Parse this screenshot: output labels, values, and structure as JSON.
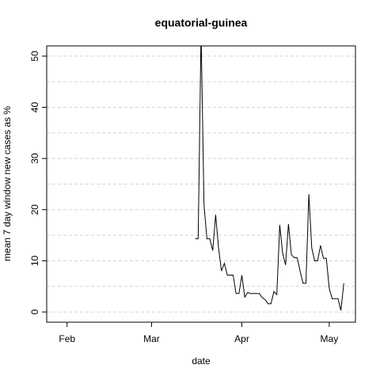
{
  "chart_data": {
    "type": "line",
    "title": "equatorial-guinea",
    "xlabel": "date",
    "ylabel": "mean  7  day window new cases as %",
    "x": [
      "03-16",
      "03-17",
      "03-18",
      "03-19",
      "03-20",
      "03-21",
      "03-22",
      "03-23",
      "03-24",
      "03-25",
      "03-26",
      "03-27",
      "03-28",
      "03-29",
      "03-30",
      "03-31",
      "04-01",
      "04-02",
      "04-03",
      "04-04",
      "04-05",
      "04-06",
      "04-07",
      "04-08",
      "04-09",
      "04-10",
      "04-11",
      "04-12",
      "04-13",
      "04-14",
      "04-15",
      "04-16",
      "04-17",
      "04-18",
      "04-19",
      "04-20",
      "04-21",
      "04-22",
      "04-23",
      "04-24",
      "04-25",
      "04-26",
      "04-27",
      "04-28",
      "04-29",
      "04-30",
      "05-01",
      "05-02",
      "05-03",
      "05-04",
      "05-05",
      "05-06"
    ],
    "series": [
      {
        "color": "#000000",
        "values": [
          14.3,
          14.3,
          55,
          21,
          14.3,
          14.3,
          12,
          19,
          12.5,
          8,
          9.5,
          7.2,
          7.2,
          7.2,
          3.6,
          3.6,
          7.2,
          2.9,
          3.8,
          3.6,
          3.6,
          3.6,
          3.6,
          2.8,
          2.4,
          1.6,
          1.6,
          4,
          3.4,
          17,
          11.5,
          9.2,
          17.2,
          11.2,
          10.6,
          10.6,
          8,
          5.6,
          5.6,
          23,
          12.5,
          10,
          10,
          13,
          10.5,
          10.5,
          4.6,
          2.6,
          2.6,
          2.6,
          0.3,
          5.6
        ]
      }
    ],
    "xlim": [
      "01-25",
      "05-10"
    ],
    "xticks": [
      {
        "value": "02-01",
        "label": "Feb"
      },
      {
        "value": "03-01",
        "label": "Mar"
      },
      {
        "value": "04-01",
        "label": "Apr"
      },
      {
        "value": "05-01",
        "label": "May"
      }
    ],
    "ylim": [
      -2,
      52
    ],
    "yticks": [
      0,
      10,
      20,
      30,
      40,
      50
    ],
    "ygrid": [
      0,
      5,
      10,
      15,
      20,
      25,
      30,
      35,
      40,
      45,
      50
    ],
    "grid": true
  }
}
